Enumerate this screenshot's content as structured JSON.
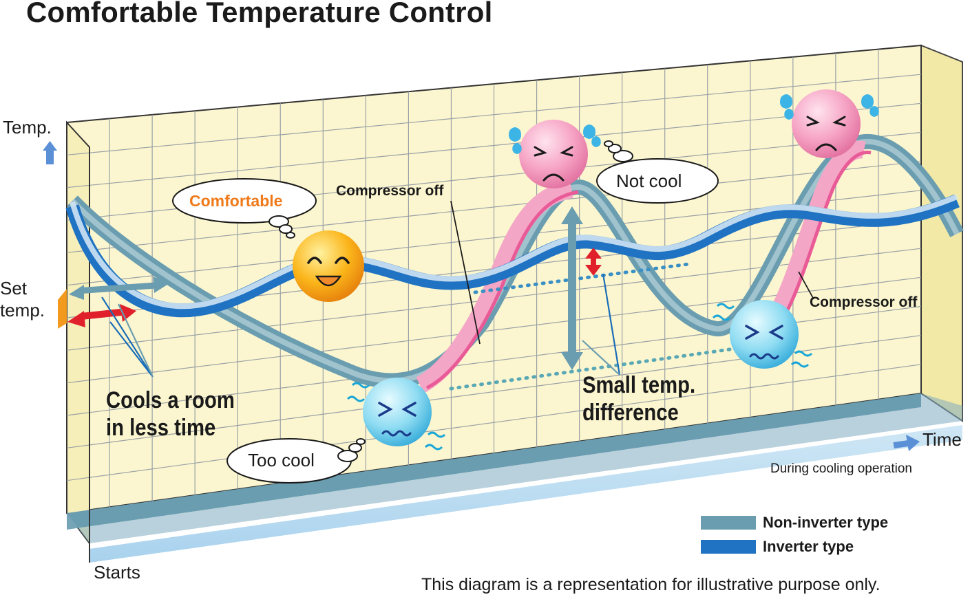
{
  "title": "Comfortable Temperature Control",
  "axis": {
    "y_label": "Temp.",
    "x_label": "Time",
    "set_temp_line1": "Set",
    "set_temp_line2": "temp.",
    "start_label": "Starts"
  },
  "annotations": {
    "cools_line1": "Cools a room",
    "cools_line2": "in less time",
    "small_diff_line1": "Small temp.",
    "small_diff_line2": "difference",
    "compressor_off_1": "Compressor off",
    "compressor_off_2": "Compressor off",
    "mode_note": "During cooling operation"
  },
  "bubbles": {
    "comfortable": "Comfortable",
    "not_cool": "Not cool",
    "too_cool": "Too cool"
  },
  "legend": [
    {
      "label": "Non-inverter type",
      "color": "#6a9db0"
    },
    {
      "label": "Inverter type",
      "color": "#1f73c2"
    }
  ],
  "disclaimer": "This diagram is a representation for illustrative purpose only.",
  "colors": {
    "panel": "#fbf6cf",
    "grid": "#9aa0a6",
    "non_inverter": "#6a9db0",
    "inverter": "#1f73c2",
    "compressor_off_ribbon": "#f4a6c6",
    "red_arrow": "#e0202a",
    "axis_arrow": "#5b8fd6",
    "set_temp_marker": "#f39a1e"
  },
  "icons": [
    "happy-face-icon",
    "unhappy-hot-face-icon",
    "cold-face-icon",
    "thought-bubble-icon",
    "up-arrow-icon",
    "right-arrow-icon"
  ]
}
